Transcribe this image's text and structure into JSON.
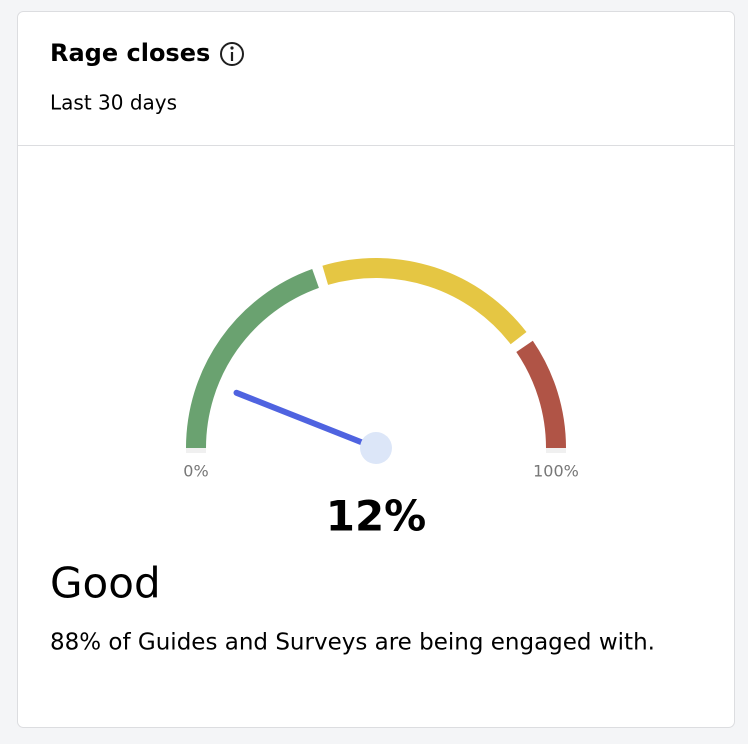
{
  "chart_data": {
    "type": "gauge",
    "title": "Rage closes",
    "subtitle": "Last 30 days",
    "value": 12,
    "value_label": "12%",
    "range": [
      0,
      100
    ],
    "ticks": [
      {
        "value": 0,
        "label": "0%"
      },
      {
        "value": 100,
        "label": "100%"
      }
    ],
    "bands": [
      {
        "from": 0,
        "to": 40,
        "color": "#6aa270"
      },
      {
        "from": 40,
        "to": 80,
        "color": "#e5c643"
      },
      {
        "from": 80,
        "to": 100,
        "color": "#b05446"
      }
    ],
    "needle_color": "#4f63e0",
    "status": "Good",
    "description": "88% of Guides and Surveys are being engaged with."
  }
}
